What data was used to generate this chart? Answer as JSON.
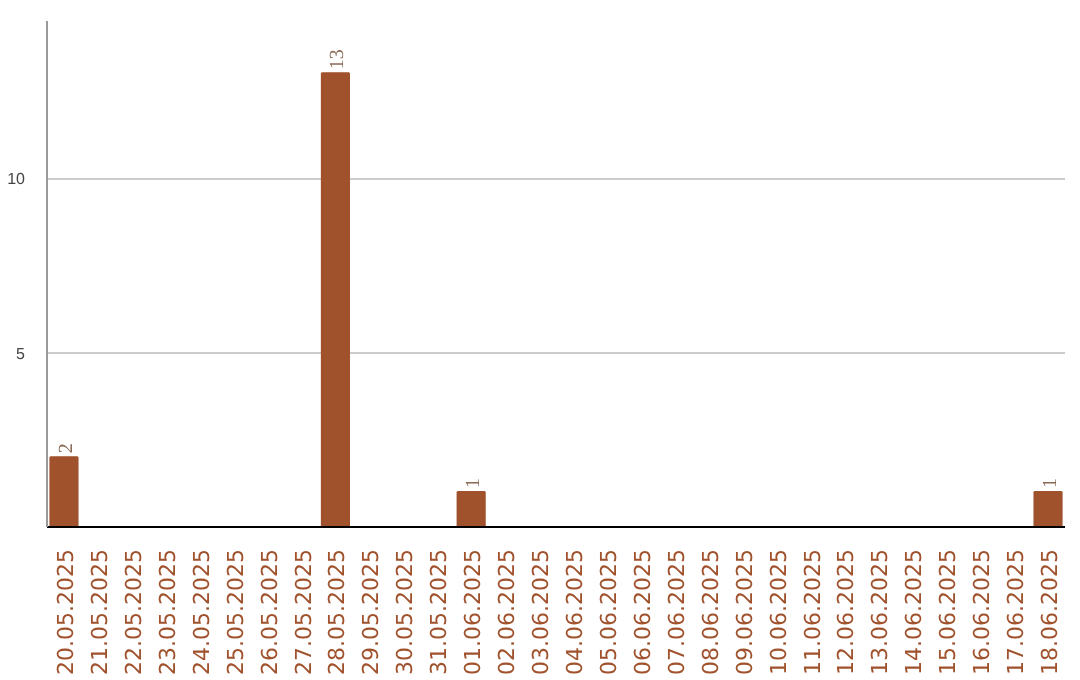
{
  "chart_data": {
    "type": "bar",
    "categories": [
      "20.05.2025",
      "21.05.2025",
      "22.05.2025",
      "23.05.2025",
      "24.05.2025",
      "25.05.2025",
      "26.05.2025",
      "27.05.2025",
      "28.05.2025",
      "29.05.2025",
      "30.05.2025",
      "31.05.2025",
      "01.06.2025",
      "02.06.2025",
      "03.06.2025",
      "04.06.2025",
      "05.06.2025",
      "06.06.2025",
      "07.06.2025",
      "08.06.2025",
      "09.06.2025",
      "10.06.2025",
      "11.06.2025",
      "12.06.2025",
      "13.06.2025",
      "14.06.2025",
      "15.06.2025",
      "16.06.2025",
      "17.06.2025",
      "18.06.2025"
    ],
    "values": [
      2,
      0,
      0,
      0,
      0,
      0,
      0,
      0,
      13,
      0,
      0,
      0,
      1,
      0,
      0,
      0,
      0,
      0,
      0,
      0,
      0,
      0,
      0,
      0,
      0,
      0,
      0,
      0,
      0,
      1
    ],
    "value_labels": [
      "2",
      null,
      null,
      null,
      null,
      null,
      null,
      null,
      "13",
      null,
      null,
      null,
      "1",
      null,
      null,
      null,
      null,
      null,
      null,
      null,
      null,
      null,
      null,
      null,
      null,
      null,
      null,
      null,
      null,
      "1"
    ],
    "color": "#a0522d",
    "ylim": [
      0,
      14.5
    ],
    "yticks": [
      5,
      10
    ],
    "grid": "y"
  }
}
